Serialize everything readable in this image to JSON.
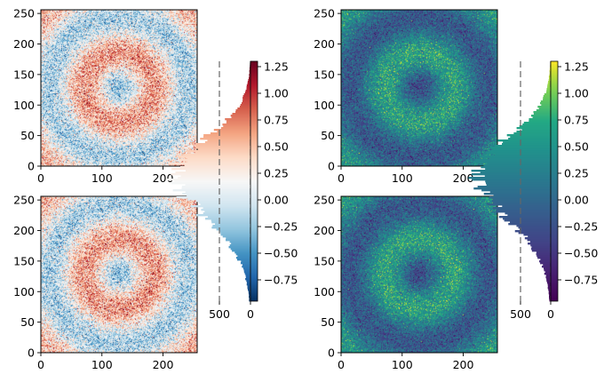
{
  "chart_data": [
    {
      "type": "heatmap",
      "colormap": "RdBu_r",
      "pattern": "concentric-rings-with-noise",
      "xlim": [
        0,
        255
      ],
      "ylim": [
        0,
        255
      ],
      "xticks": [
        "0",
        "100",
        "200"
      ],
      "yticks": [
        "0",
        "50",
        "100",
        "150",
        "200",
        "250"
      ],
      "vmin": -0.95,
      "vmax": 1.3
    },
    {
      "type": "heatmap",
      "colormap": "RdBu_r",
      "pattern": "concentric-rings-with-noise",
      "xlim": [
        0,
        255
      ],
      "ylim": [
        0,
        255
      ],
      "xticks": [
        "0",
        "100",
        "200"
      ],
      "yticks": [
        "0",
        "50",
        "100",
        "150",
        "200",
        "250"
      ],
      "vmin": -0.95,
      "vmax": 1.3
    },
    {
      "type": "heatmap",
      "colormap": "viridis",
      "pattern": "concentric-rings-with-noise",
      "xlim": [
        0,
        255
      ],
      "ylim": [
        0,
        255
      ],
      "xticks": [
        "0",
        "100",
        "200"
      ],
      "yticks": [
        "0",
        "50",
        "100",
        "150",
        "200",
        "250"
      ],
      "vmin": -0.95,
      "vmax": 1.3
    },
    {
      "type": "heatmap",
      "colormap": "viridis",
      "pattern": "concentric-rings-with-noise",
      "xlim": [
        0,
        255
      ],
      "ylim": [
        0,
        255
      ],
      "xticks": [
        "0",
        "100",
        "200"
      ],
      "yticks": [
        "0",
        "50",
        "100",
        "150",
        "200",
        "250"
      ],
      "vmin": -0.95,
      "vmax": 1.3
    },
    {
      "type": "colorbar-histogram",
      "colormap": "RdBu_r",
      "orientation": "horizontal-bars",
      "ylim": [
        -0.95,
        1.3
      ],
      "yticks": [
        "1.25",
        "1.00",
        "0.75",
        "0.50",
        "0.25",
        "0.00",
        "−0.25",
        "−0.50",
        "−0.75"
      ],
      "ytick_values": [
        1.25,
        1.0,
        0.75,
        0.5,
        0.25,
        0.0,
        -0.25,
        -0.5,
        -0.75
      ],
      "xticks": [
        "500",
        "0"
      ],
      "xtick_values": [
        500,
        0
      ],
      "mean_count": 500,
      "histogram_profile": "count peaks near 0.25 and tapers to zero at both ends"
    },
    {
      "type": "colorbar-histogram",
      "colormap": "viridis",
      "orientation": "horizontal-bars",
      "ylim": [
        -0.95,
        1.3
      ],
      "yticks": [
        "1.25",
        "1.00",
        "0.75",
        "0.50",
        "0.25",
        "0.00",
        "−0.25",
        "−0.50",
        "−0.75"
      ],
      "ytick_values": [
        1.25,
        1.0,
        0.75,
        0.5,
        0.25,
        0.0,
        -0.25,
        -0.5,
        -0.75
      ],
      "xticks": [
        "500",
        "0"
      ],
      "xtick_values": [
        500,
        0
      ],
      "mean_count": 500,
      "histogram_profile": "count peaks near 0.25 and tapers to zero at both ends"
    }
  ]
}
